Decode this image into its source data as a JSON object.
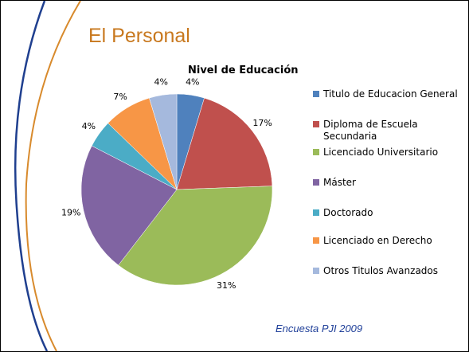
{
  "title": "El Personal",
  "footer": "Encuesta PJI 2009",
  "chart_data": {
    "type": "pie",
    "title": "Nivel de Educación",
    "categories": [
      "Titulo de Educacion General",
      "Diploma de Escuela Secundaria",
      "Licenciado Universitario",
      "Máster",
      "Doctorado",
      "Licenciado en Derecho",
      "Otros Titulos Avanzados"
    ],
    "values": [
      4,
      17,
      31,
      19,
      4,
      7,
      4
    ],
    "value_labels": [
      "4%",
      "17%",
      "31%",
      "19%",
      "4%",
      "7%",
      "4%"
    ],
    "colors": [
      "#4f81bd",
      "#c0504d",
      "#9bbb59",
      "#8064a2",
      "#4bacc6",
      "#f79646",
      "#a5b9dd"
    ]
  }
}
